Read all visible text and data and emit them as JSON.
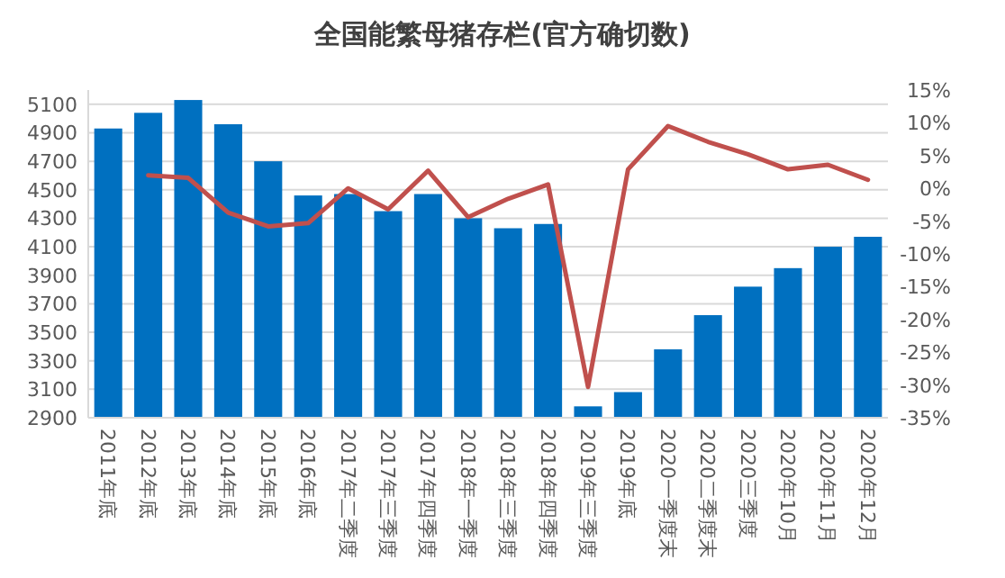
{
  "chart_data": {
    "type": "bar",
    "title": "全国能繁母猪存栏(官方确切数)",
    "categories": [
      "2011年底",
      "2012年底",
      "2013年底",
      "2014年底",
      "2015年底",
      "2016年底",
      "2017年二季度",
      "2017年三季度",
      "2017年四季度",
      "2018年一季度",
      "2018年三季度",
      "2018年四季度",
      "2019年三季度",
      "2019年底",
      "2020一季度末",
      "2020二季度末",
      "2020三季度",
      "2020年10月",
      "2020年11月",
      "2020年12月"
    ],
    "series": [
      {
        "color": "#0070c0",
        "values": [
          4930,
          5040,
          5130,
          4960,
          4700,
          4460,
          4470,
          4350,
          4470,
          4300,
          4230,
          4260,
          2980,
          3080,
          3380,
          3620,
          3820,
          3950,
          4100,
          4170
        ]
      },
      {
        "type": "line",
        "axis": "y2",
        "color": "#c0504d",
        "values": [
          null,
          2.0,
          1.6,
          -3.7,
          -5.8,
          -5.3,
          0.0,
          -3.2,
          2.7,
          -4.4,
          -1.6,
          0.6,
          -30.3,
          2.9,
          9.5,
          7.1,
          5.2,
          2.9,
          3.6,
          1.3
        ]
      }
    ],
    "ylim": [
      2900,
      5200
    ],
    "yticks": [
      2900,
      3100,
      3300,
      3500,
      3700,
      3900,
      4100,
      4300,
      4500,
      4700,
      4900,
      5100
    ],
    "y2lim": [
      -35,
      15
    ],
    "y2ticks": [
      {
        "value": -35,
        "label": "-35%"
      },
      {
        "value": -30,
        "label": "-30%"
      },
      {
        "value": -25,
        "label": "-25%"
      },
      {
        "value": -20,
        "label": "-20%"
      },
      {
        "value": -15,
        "label": "-15%"
      },
      {
        "value": -10,
        "label": "-10%"
      },
      {
        "value": -5,
        "label": "-5%"
      },
      {
        "value": 0,
        "label": "0%"
      },
      {
        "value": 5,
        "label": "5%"
      },
      {
        "value": 10,
        "label": "10%"
      },
      {
        "value": 15,
        "label": "15%"
      }
    ],
    "grid": "y",
    "legend": false
  }
}
